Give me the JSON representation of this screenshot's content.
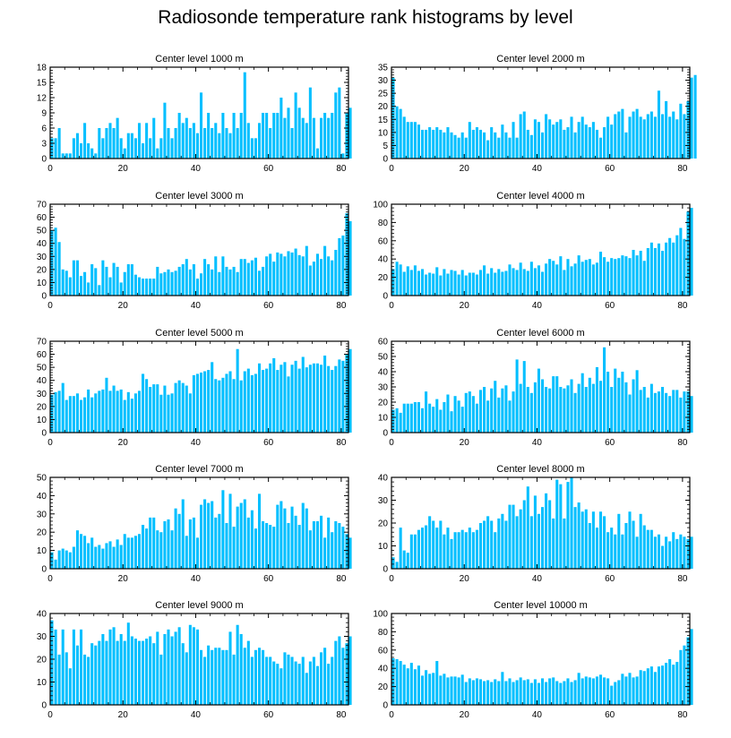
{
  "title": "Radiosonde temperature rank histograms by level",
  "bar_color": "#00bfff",
  "chart_data": [
    {
      "type": "bar",
      "title": "Center level 1000 m",
      "xlim": [
        0,
        82
      ],
      "ylim": [
        0,
        18
      ],
      "xticks": [
        0,
        20,
        40,
        60,
        80
      ],
      "yticks": [
        0,
        3,
        6,
        9,
        12,
        15,
        18
      ],
      "values": [
        4,
        4,
        6,
        1,
        1,
        1,
        4,
        5,
        3,
        7,
        3,
        2,
        1,
        6,
        4,
        6,
        7,
        6,
        8,
        4,
        2,
        5,
        5,
        4,
        7,
        3,
        7,
        4,
        8,
        2,
        4,
        11,
        6,
        4,
        6,
        9,
        7,
        8,
        6,
        7,
        5,
        13,
        6,
        9,
        6,
        7,
        5,
        9,
        6,
        5,
        9,
        6,
        9,
        17,
        7,
        4,
        4,
        7,
        9,
        9,
        6,
        9,
        9,
        12,
        8,
        10,
        6,
        13,
        10,
        8,
        7,
        14,
        8,
        2,
        8,
        9,
        8,
        9,
        13,
        14,
        1,
        9,
        10
      ]
    },
    {
      "type": "bar",
      "title": "Center level 2000 m",
      "xlim": [
        0,
        82
      ],
      "ylim": [
        0,
        35
      ],
      "xticks": [
        0,
        20,
        40,
        60,
        80
      ],
      "yticks": [
        0,
        5,
        10,
        15,
        20,
        25,
        30,
        35
      ],
      "values": [
        31,
        20,
        19,
        16,
        14,
        14,
        14,
        13,
        11,
        11,
        12,
        11,
        12,
        11,
        10,
        12,
        10,
        9,
        8,
        10,
        8,
        14,
        11,
        12,
        11,
        10,
        7,
        12,
        10,
        8,
        13,
        10,
        8,
        14,
        8,
        17,
        18,
        11,
        9,
        15,
        14,
        10,
        17,
        15,
        13,
        14,
        15,
        11,
        12,
        16,
        10,
        14,
        16,
        13,
        12,
        14,
        11,
        8,
        12,
        16,
        13,
        17,
        18,
        19,
        10,
        16,
        18,
        19,
        16,
        15,
        17,
        18,
        16,
        26,
        17,
        22,
        16,
        18,
        15,
        21,
        17,
        22,
        31,
        32
      ]
    },
    {
      "type": "bar",
      "title": "Center level 3000 m",
      "xlim": [
        0,
        82
      ],
      "ylim": [
        0,
        70
      ],
      "xticks": [
        0,
        20,
        40,
        60,
        80
      ],
      "yticks": [
        0,
        10,
        20,
        30,
        40,
        50,
        60,
        70
      ],
      "values": [
        50,
        52,
        41,
        20,
        19,
        14,
        27,
        27,
        15,
        18,
        10,
        24,
        21,
        8,
        27,
        22,
        14,
        25,
        22,
        10,
        18,
        24,
        24,
        16,
        14,
        13,
        13,
        13,
        13,
        22,
        17,
        18,
        20,
        18,
        19,
        22,
        24,
        28,
        20,
        24,
        13,
        17,
        28,
        24,
        20,
        30,
        18,
        30,
        22,
        20,
        22,
        18,
        28,
        28,
        25,
        27,
        29,
        19,
        22,
        30,
        32,
        26,
        33,
        32,
        30,
        34,
        33,
        36,
        31,
        30,
        38,
        23,
        26,
        32,
        28,
        38,
        30,
        27,
        35,
        44,
        46,
        63,
        57
      ]
    },
    {
      "type": "bar",
      "title": "Center level 4000 m",
      "xlim": [
        0,
        82
      ],
      "ylim": [
        0,
        100
      ],
      "xticks": [
        0,
        20,
        40,
        60,
        80
      ],
      "yticks": [
        0,
        20,
        40,
        60,
        80,
        100
      ],
      "values": [
        29,
        37,
        34,
        26,
        32,
        28,
        33,
        27,
        29,
        23,
        25,
        24,
        31,
        22,
        29,
        24,
        28,
        27,
        23,
        28,
        22,
        25,
        25,
        23,
        28,
        33,
        24,
        30,
        25,
        29,
        26,
        27,
        34,
        30,
        28,
        36,
        29,
        27,
        37,
        30,
        33,
        26,
        35,
        40,
        38,
        34,
        43,
        28,
        40,
        32,
        35,
        44,
        37,
        39,
        40,
        34,
        36,
        48,
        42,
        37,
        41,
        40,
        41,
        44,
        43,
        41,
        50,
        44,
        49,
        38,
        52,
        58,
        52,
        57,
        49,
        58,
        63,
        58,
        66,
        74,
        62,
        92,
        96
      ]
    },
    {
      "type": "bar",
      "title": "Center level 5000 m",
      "xlim": [
        0,
        82
      ],
      "ylim": [
        0,
        70
      ],
      "xticks": [
        0,
        20,
        40,
        60,
        80
      ],
      "yticks": [
        0,
        10,
        20,
        30,
        40,
        50,
        60,
        70
      ],
      "values": [
        29,
        31,
        32,
        38,
        25,
        28,
        28,
        30,
        25,
        27,
        33,
        27,
        30,
        32,
        33,
        42,
        32,
        36,
        32,
        33,
        25,
        31,
        26,
        30,
        32,
        45,
        41,
        35,
        37,
        37,
        29,
        36,
        29,
        30,
        38,
        40,
        38,
        36,
        30,
        44,
        45,
        46,
        47,
        48,
        54,
        41,
        40,
        42,
        45,
        47,
        41,
        64,
        40,
        47,
        49,
        44,
        45,
        53,
        48,
        49,
        53,
        57,
        48,
        52,
        54,
        43,
        52,
        55,
        49,
        58,
        50,
        52,
        53,
        53,
        52,
        59,
        51,
        48,
        51,
        56,
        55,
        60,
        64
      ]
    },
    {
      "type": "bar",
      "title": "Center level 6000 m",
      "xlim": [
        0,
        82
      ],
      "ylim": [
        0,
        60
      ],
      "xticks": [
        0,
        20,
        40,
        60,
        80
      ],
      "yticks": [
        0,
        10,
        20,
        30,
        40,
        50,
        60
      ],
      "values": [
        15,
        16,
        13,
        19,
        19,
        19,
        20,
        20,
        16,
        27,
        19,
        17,
        22,
        15,
        20,
        25,
        14,
        24,
        21,
        17,
        26,
        27,
        24,
        19,
        28,
        30,
        21,
        29,
        34,
        23,
        29,
        31,
        21,
        27,
        48,
        32,
        47,
        30,
        26,
        33,
        42,
        35,
        30,
        29,
        37,
        37,
        30,
        29,
        31,
        35,
        26,
        32,
        39,
        30,
        36,
        32,
        43,
        34,
        56,
        40,
        30,
        42,
        36,
        40,
        33,
        25,
        35,
        41,
        28,
        30,
        23,
        32,
        26,
        27,
        30,
        26,
        24,
        28,
        28,
        23,
        27,
        27,
        24
      ]
    },
    {
      "type": "bar",
      "title": "Center level 7000 m",
      "xlim": [
        0,
        82
      ],
      "ylim": [
        0,
        50
      ],
      "xticks": [
        0,
        20,
        40,
        60,
        80
      ],
      "yticks": [
        0,
        10,
        20,
        30,
        40,
        50
      ],
      "values": [
        9,
        5,
        10,
        11,
        10,
        9,
        12,
        21,
        19,
        18,
        14,
        17,
        12,
        13,
        11,
        14,
        15,
        12,
        16,
        13,
        19,
        17,
        17,
        18,
        19,
        24,
        22,
        28,
        28,
        21,
        20,
        26,
        27,
        21,
        33,
        30,
        38,
        18,
        27,
        28,
        17,
        35,
        38,
        36,
        37,
        28,
        30,
        43,
        25,
        41,
        23,
        34,
        36,
        38,
        28,
        32,
        22,
        41,
        26,
        25,
        24,
        23,
        35,
        37,
        33,
        25,
        34,
        29,
        24,
        36,
        33,
        21,
        26,
        26,
        29,
        17,
        28,
        20,
        26,
        25,
        23,
        19,
        17
      ]
    },
    {
      "type": "bar",
      "title": "Center level 8000 m",
      "xlim": [
        0,
        82
      ],
      "ylim": [
        0,
        40
      ],
      "xticks": [
        0,
        20,
        40,
        60,
        80
      ],
      "yticks": [
        0,
        10,
        20,
        30,
        40
      ],
      "values": [
        5,
        3,
        18,
        8,
        7,
        15,
        15,
        17,
        18,
        19,
        23,
        21,
        18,
        21,
        15,
        18,
        13,
        16,
        16,
        17,
        16,
        18,
        16,
        17,
        20,
        21,
        23,
        21,
        16,
        22,
        24,
        21,
        28,
        28,
        23,
        26,
        30,
        36,
        23,
        32,
        24,
        27,
        33,
        30,
        22,
        39,
        37,
        22,
        38,
        40,
        27,
        29,
        25,
        26,
        20,
        25,
        18,
        25,
        23,
        16,
        18,
        15,
        24,
        15,
        20,
        25,
        21,
        14,
        24,
        19,
        17,
        17,
        14,
        15,
        10,
        14,
        12,
        16,
        13,
        15,
        14,
        13,
        14
      ]
    },
    {
      "type": "bar",
      "title": "Center level 9000 m",
      "xlim": [
        0,
        82
      ],
      "ylim": [
        0,
        40
      ],
      "xticks": [
        0,
        20,
        40,
        60,
        80
      ],
      "yticks": [
        0,
        10,
        20,
        30,
        40
      ],
      "values": [
        37,
        33,
        22,
        33,
        23,
        16,
        33,
        26,
        33,
        22,
        21,
        27,
        26,
        28,
        31,
        28,
        33,
        34,
        28,
        31,
        28,
        36,
        30,
        29,
        28,
        28,
        29,
        30,
        27,
        32,
        22,
        31,
        33,
        30,
        32,
        34,
        27,
        23,
        35,
        34,
        33,
        24,
        21,
        26,
        24,
        25,
        25,
        24,
        24,
        32,
        22,
        35,
        31,
        25,
        28,
        21,
        24,
        25,
        24,
        21,
        21,
        19,
        18,
        16,
        23,
        22,
        21,
        19,
        18,
        21,
        14,
        19,
        21,
        17,
        23,
        25,
        18,
        21,
        28,
        30,
        25,
        27,
        30
      ]
    },
    {
      "type": "bar",
      "title": "Center level 10000 m",
      "xlim": [
        0,
        82
      ],
      "ylim": [
        0,
        100
      ],
      "xticks": [
        0,
        20,
        40,
        60,
        80
      ],
      "yticks": [
        0,
        20,
        40,
        60,
        80,
        100
      ],
      "values": [
        51,
        50,
        48,
        44,
        40,
        46,
        39,
        43,
        32,
        38,
        34,
        35,
        48,
        32,
        34,
        30,
        31,
        31,
        30,
        33,
        25,
        29,
        27,
        29,
        28,
        26,
        27,
        25,
        28,
        26,
        36,
        26,
        29,
        25,
        27,
        30,
        27,
        28,
        24,
        28,
        24,
        29,
        25,
        29,
        30,
        26,
        24,
        26,
        29,
        25,
        27,
        35,
        29,
        31,
        30,
        29,
        31,
        33,
        30,
        29,
        21,
        25,
        27,
        34,
        31,
        35,
        30,
        31,
        38,
        37,
        40,
        42,
        36,
        42,
        43,
        46,
        50,
        44,
        47,
        60,
        65,
        74,
        83
      ]
    }
  ]
}
